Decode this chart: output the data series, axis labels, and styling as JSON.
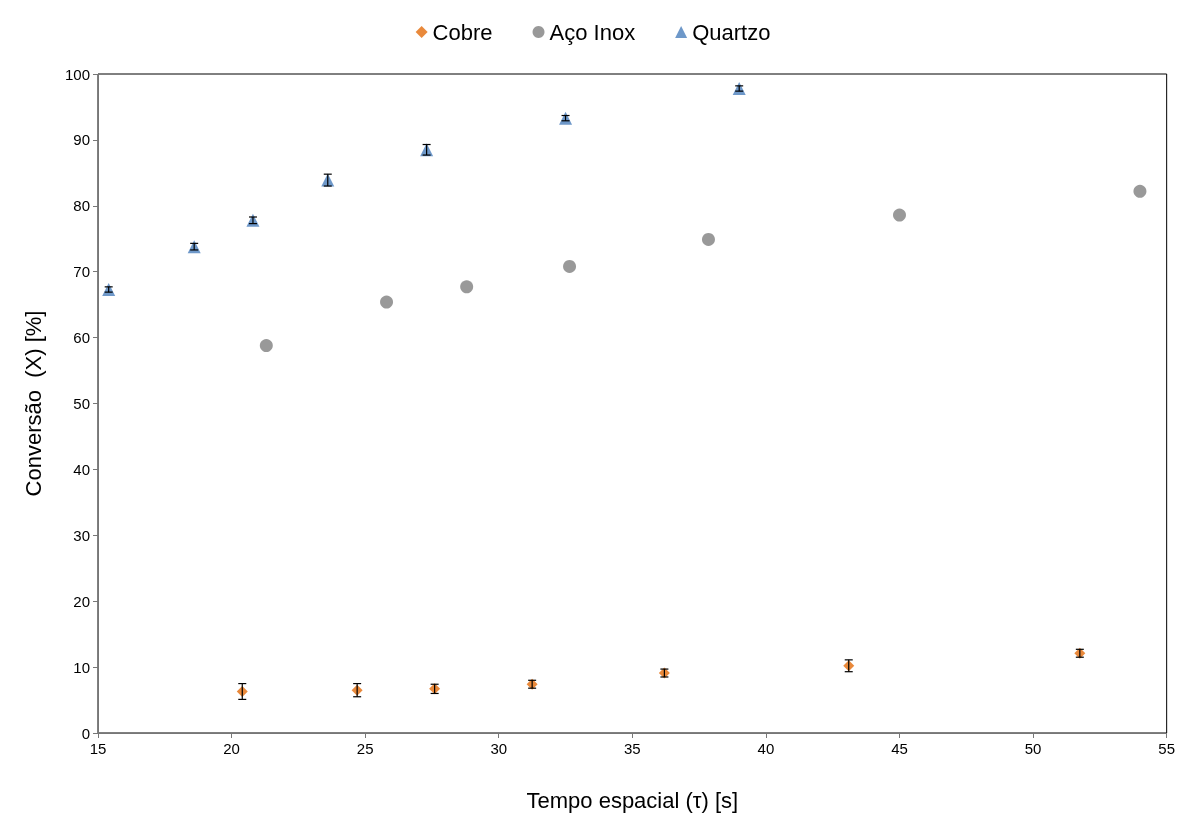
{
  "chart_data": {
    "type": "scatter",
    "xlabel": "Tempo espacial (τ) [s]",
    "ylabel": "Conversão  (X) [%]",
    "xlim": [
      15,
      55
    ],
    "xticks": [
      15,
      20,
      25,
      30,
      35,
      40,
      45,
      50,
      55
    ],
    "ylim": [
      0,
      100
    ],
    "yticks": [
      0,
      10,
      20,
      30,
      40,
      50,
      60,
      70,
      80,
      90,
      100
    ],
    "grid": false,
    "legend": "top",
    "series": [
      {
        "name": "Cobre",
        "color": "#e46c0a",
        "marker": "diamond",
        "x": [
          20.4,
          24.7,
          27.6,
          31.25,
          36.2,
          43.1,
          51.75
        ],
        "values": [
          6.3,
          6.5,
          6.7,
          7.4,
          9.1,
          10.2,
          12.1
        ],
        "errors": [
          1.2,
          1,
          0.7,
          0.6,
          0.6,
          0.9,
          0.6
        ]
      },
      {
        "name": "Aço Inox",
        "color": "#808080",
        "marker": "circle",
        "x": [
          21.3,
          25.8,
          28.8,
          32.65,
          37.85,
          45.0,
          54.0
        ],
        "values": [
          58.8,
          65.4,
          67.7,
          70.8,
          74.9,
          78.6,
          82.2
        ]
      },
      {
        "name": "Quartzo",
        "color": "#4a7ebb",
        "marker": "triangle",
        "x": [
          15.4,
          18.6,
          20.8,
          23.6,
          27.3,
          32.5,
          39.0
        ],
        "values": [
          67.3,
          73.8,
          77.8,
          83.9,
          88.5,
          93.3,
          97.8
        ],
        "errors": [
          0.4,
          0.5,
          0.5,
          0.9,
          0.8,
          0.4,
          0.4
        ]
      }
    ]
  }
}
